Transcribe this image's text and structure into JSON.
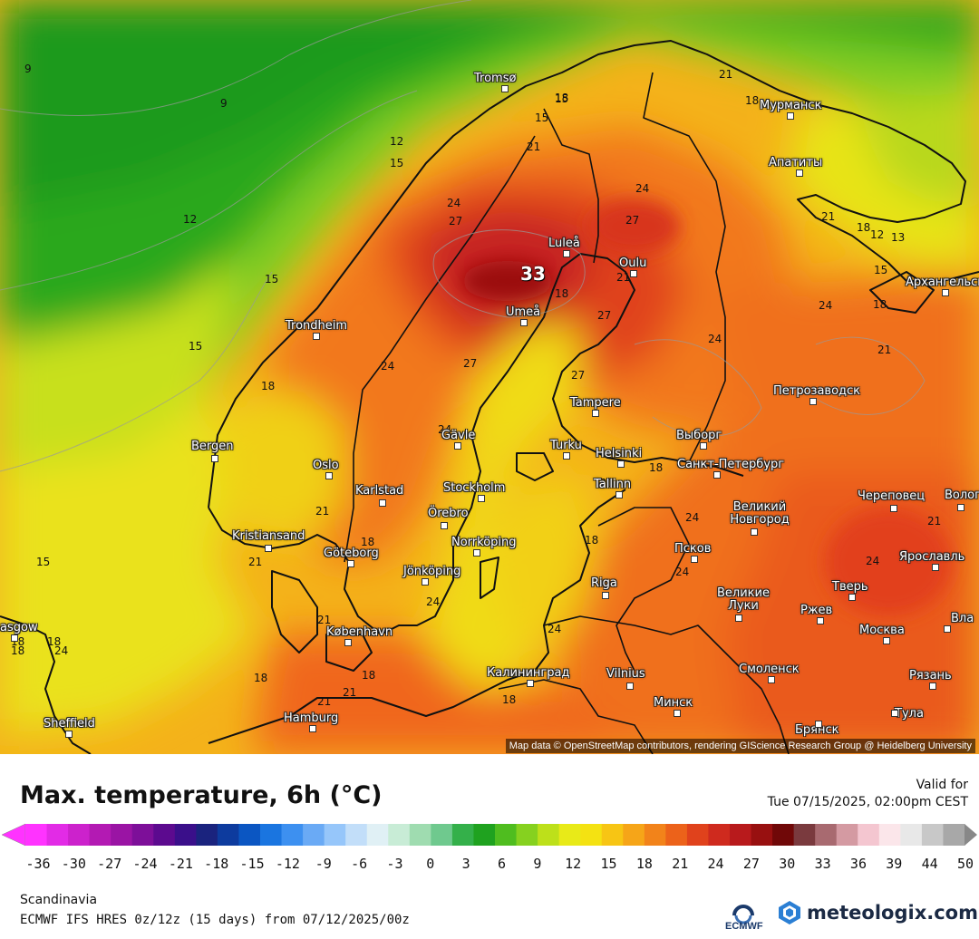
{
  "map": {
    "cities": [
      {
        "name": "Tromsø"
      },
      {
        "name": "Мурманск"
      },
      {
        "name": "Апатиты"
      },
      {
        "name": "Luleå"
      },
      {
        "name": "Oulu"
      },
      {
        "name": "Umeå"
      },
      {
        "name": "Trondheim"
      },
      {
        "name": "Архангельск"
      },
      {
        "name": "Tampere"
      },
      {
        "name": "Петрозаводск"
      },
      {
        "name": "Bergen"
      },
      {
        "name": "Gävle"
      },
      {
        "name": "Turku"
      },
      {
        "name": "Helsinki"
      },
      {
        "name": "Выборг"
      },
      {
        "name": "Oslo"
      },
      {
        "name": "Санкт-Петербург"
      },
      {
        "name": "Tallinn"
      },
      {
        "name": "Karlstad"
      },
      {
        "name": "Stockholm"
      },
      {
        "name": "Великий Новгород"
      },
      {
        "name": "Череповец"
      },
      {
        "name": "Волог"
      },
      {
        "name": "Örebro"
      },
      {
        "name": "Kristiansand"
      },
      {
        "name": "Norrköping"
      },
      {
        "name": "Göteborg"
      },
      {
        "name": "Jönköping"
      },
      {
        "name": "Псков"
      },
      {
        "name": "Ярославль"
      },
      {
        "name": "Riga"
      },
      {
        "name": "Тверь"
      },
      {
        "name": "Великие Луки"
      },
      {
        "name": "Ржев"
      },
      {
        "name": "Москва"
      },
      {
        "name": "Вла"
      },
      {
        "name": "asgow"
      },
      {
        "name": "København"
      },
      {
        "name": "Калининград"
      },
      {
        "name": "Vilnius"
      },
      {
        "name": "Смоленск"
      },
      {
        "name": "Рязань"
      },
      {
        "name": "Минск"
      },
      {
        "name": "Тула"
      },
      {
        "name": "Sheffield"
      },
      {
        "name": "Hamburg"
      },
      {
        "name": "Брянск"
      }
    ],
    "isotherm_labels": [
      {
        "text": "9"
      },
      {
        "text": "9"
      },
      {
        "text": "15"
      },
      {
        "text": "15"
      },
      {
        "text": "18"
      },
      {
        "text": "21"
      },
      {
        "text": "21"
      },
      {
        "text": "12"
      },
      {
        "text": "15"
      },
      {
        "text": "24"
      },
      {
        "text": "27"
      },
      {
        "text": "24"
      },
      {
        "text": "27"
      },
      {
        "text": "12"
      },
      {
        "text": "21"
      },
      {
        "text": "18"
      },
      {
        "text": "12"
      },
      {
        "text": "13"
      },
      {
        "text": "15"
      },
      {
        "text": "33"
      },
      {
        "text": "18"
      },
      {
        "text": "21"
      },
      {
        "text": "27"
      },
      {
        "text": "15"
      },
      {
        "text": "15"
      },
      {
        "text": "18"
      },
      {
        "text": "24"
      },
      {
        "text": "24"
      },
      {
        "text": "21"
      },
      {
        "text": "27"
      },
      {
        "text": "27"
      },
      {
        "text": "18"
      },
      {
        "text": "24"
      },
      {
        "text": "24"
      },
      {
        "text": "21"
      },
      {
        "text": "18"
      },
      {
        "text": "21"
      },
      {
        "text": "18"
      },
      {
        "text": "21"
      },
      {
        "text": "24"
      },
      {
        "text": "21"
      },
      {
        "text": "24"
      },
      {
        "text": "15"
      },
      {
        "text": "18"
      },
      {
        "text": "18"
      },
      {
        "text": "24"
      },
      {
        "text": "24"
      },
      {
        "text": "24"
      },
      {
        "text": "24"
      },
      {
        "text": "18"
      },
      {
        "text": "18"
      },
      {
        "text": "18"
      },
      {
        "text": "21"
      },
      {
        "text": "24"
      },
      {
        "text": "18"
      },
      {
        "text": "18"
      },
      {
        "text": "21"
      },
      {
        "text": "21"
      },
      {
        "text": "18"
      }
    ],
    "attribution": "Map data © OpenStreetMap contributors, rendering GIScience Research Group @ Heidelberg University"
  },
  "legend": {
    "title": "Max. temperature, 6h (°C)",
    "valid_label": "Valid for",
    "valid_time": "Tue 07/15/2025, 02:00pm CEST",
    "ticks": [
      "-36",
      "-30",
      "-27",
      "-24",
      "-21",
      "-18",
      "-15",
      "-12",
      "-9",
      "-6",
      "-3",
      "0",
      "3",
      "6",
      "9",
      "12",
      "15",
      "18",
      "21",
      "24",
      "27",
      "30",
      "33",
      "36",
      "39",
      "44",
      "50"
    ],
    "colors": [
      "#ff33ff",
      "#e22be6",
      "#cc22cc",
      "#b31ab3",
      "#9a14a4",
      "#7d0f99",
      "#5c0a8f",
      "#3a0f8a",
      "#1a237e",
      "#0d3b9e",
      "#0b56c2",
      "#1a75e0",
      "#3d90f0",
      "#6aaaf5",
      "#96c6fa",
      "#c2def9",
      "#e0f0f5",
      "#c8ecd6",
      "#9fdcb0",
      "#6fc98e",
      "#34b04a",
      "#1fa21f",
      "#4fbd1f",
      "#86d11f",
      "#bde01a",
      "#e8ea18",
      "#f4e212",
      "#f7c514",
      "#f6a518",
      "#f2831a",
      "#ec621a",
      "#e0421c",
      "#cf2a1e",
      "#b81a1c",
      "#981010",
      "#700808",
      "#7a3a3e",
      "#a86a70",
      "#d49aa2",
      "#f4c6d0",
      "#fbe6ea",
      "#e8e8e8",
      "#c8c8c8",
      "#a8a8a8"
    ],
    "region": "Scandinavia",
    "model": "ECMWF IFS HRES 0z/12z (15 days) from 07/12/2025/00z",
    "ecmwf_label": "ECMWF",
    "brand": "meteologix.com"
  }
}
